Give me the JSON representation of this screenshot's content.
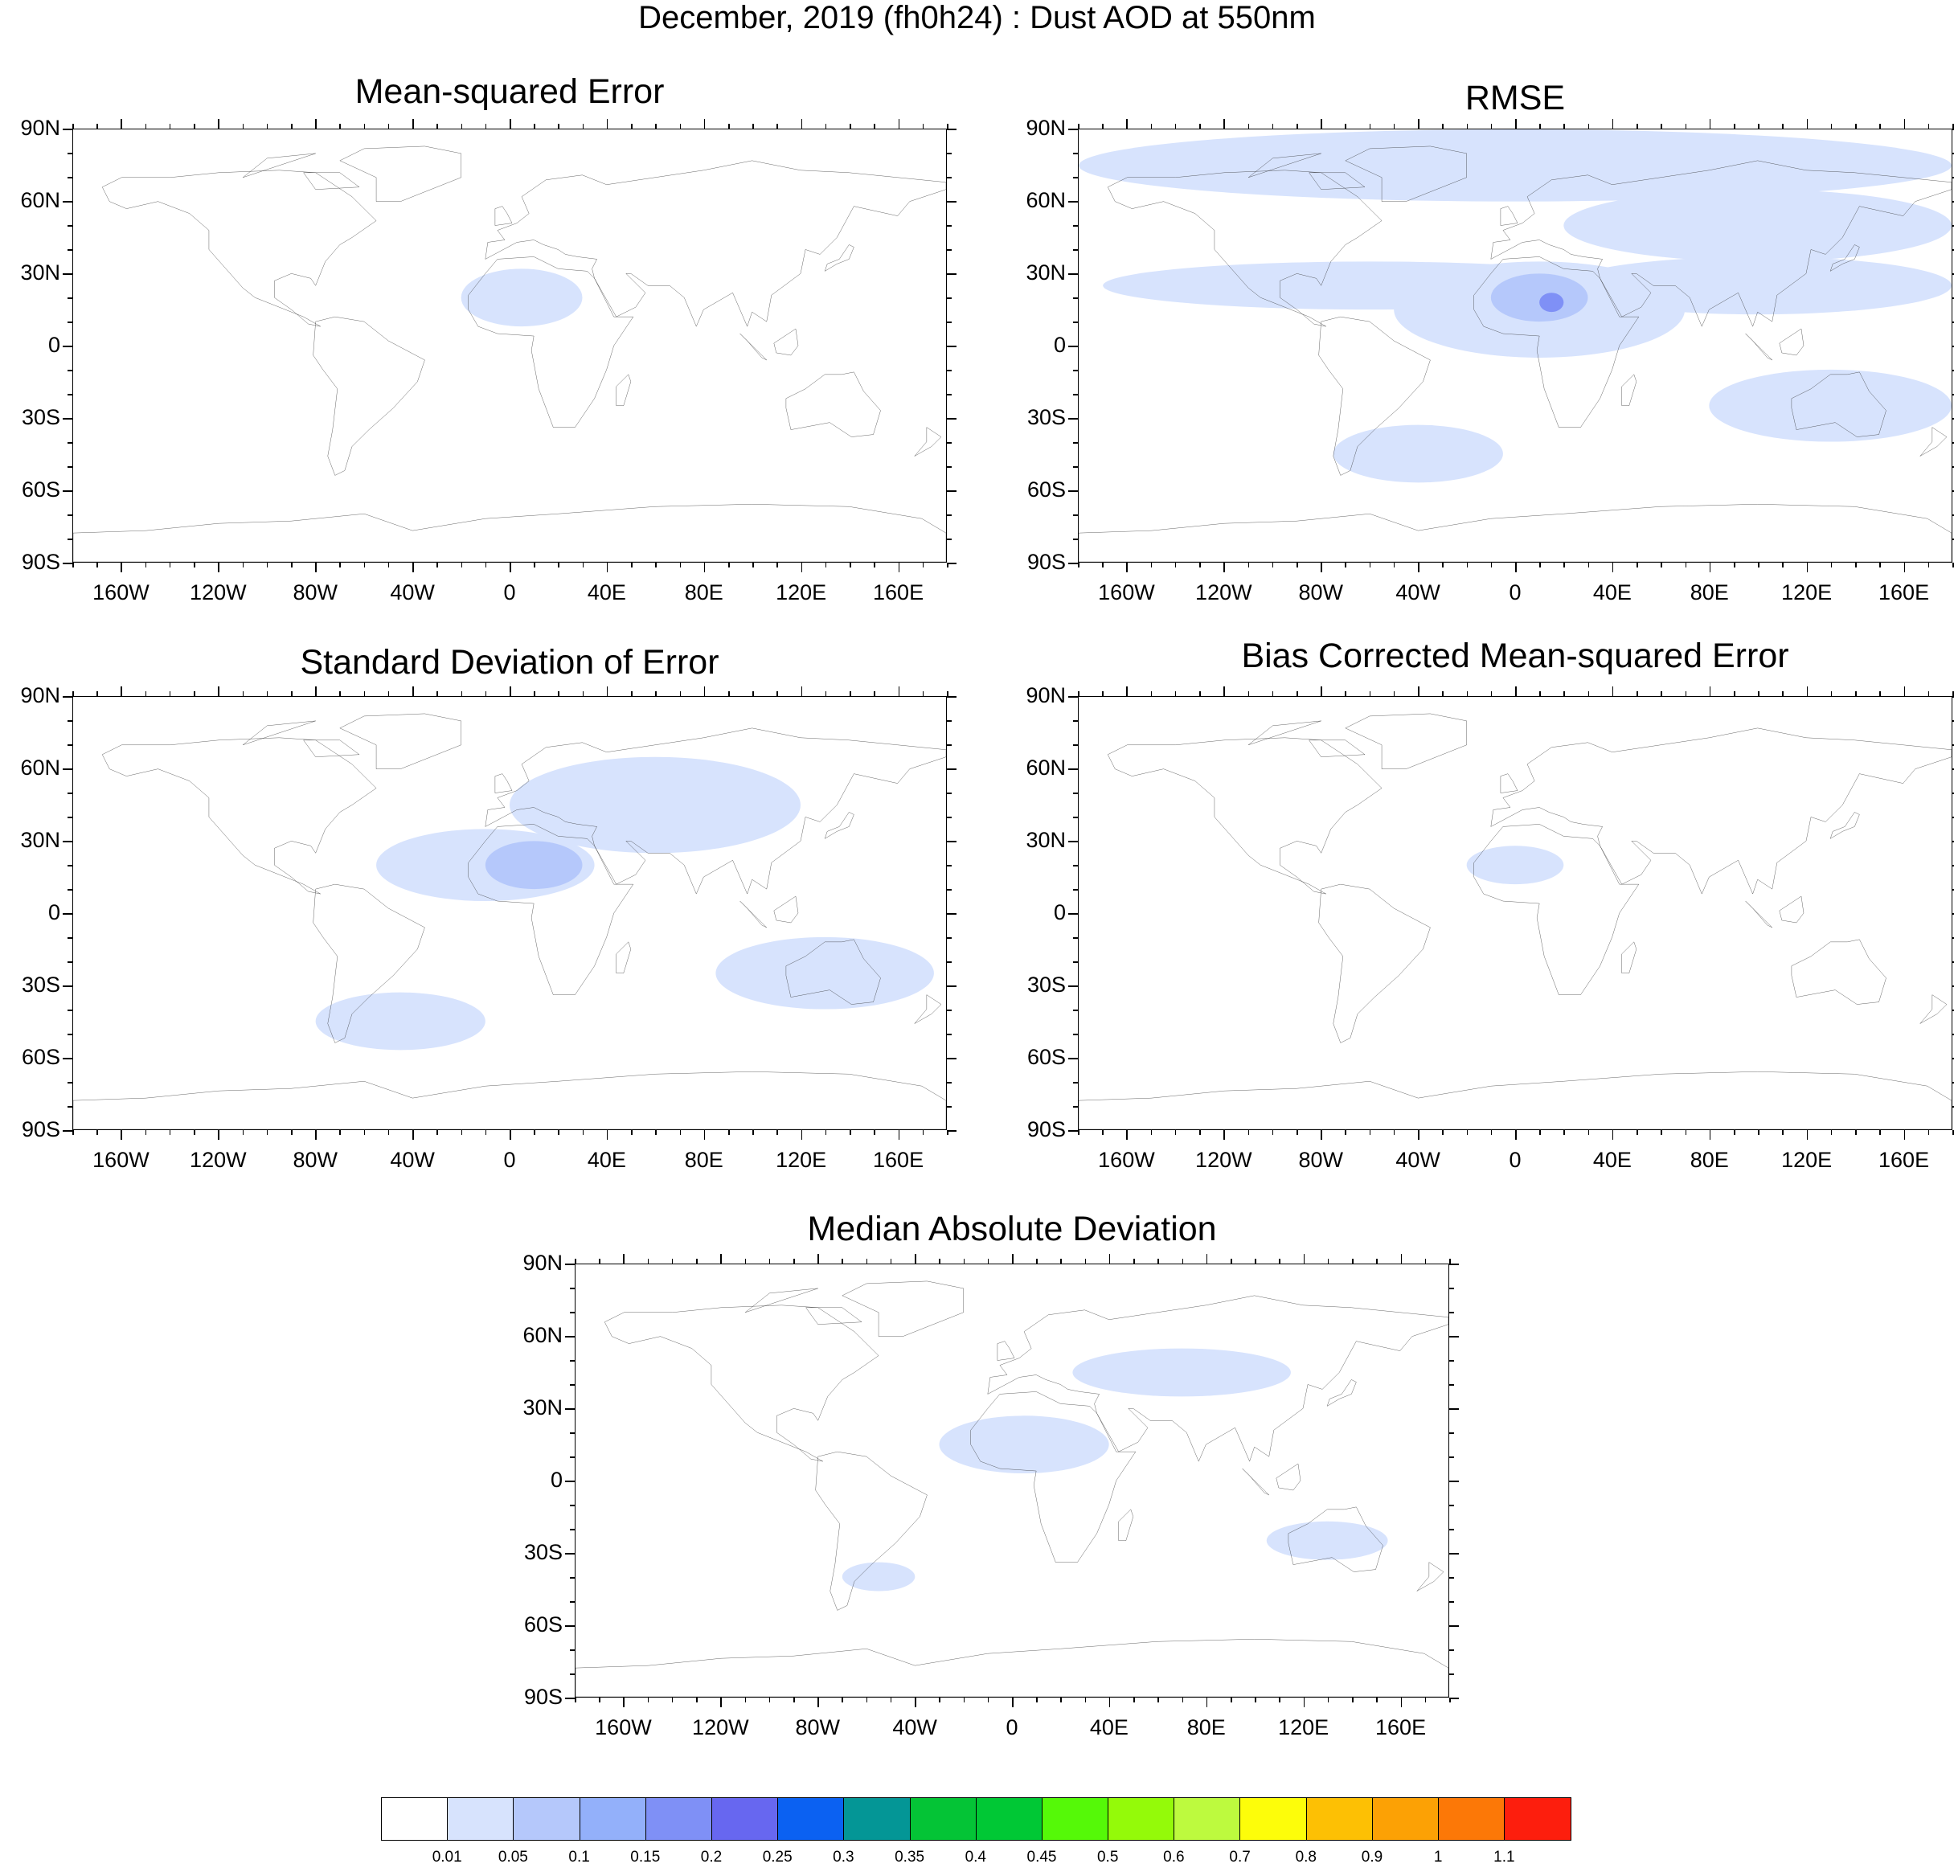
{
  "title": "December, 2019 (fh0h24) : Dust AOD at 550nm",
  "panels": [
    {
      "title": "Mean-squared Error",
      "blobs": [
        {
          "lon": 5,
          "lat": 20,
          "rx": 25,
          "ry": 12,
          "level": 1
        }
      ]
    },
    {
      "title": "RMSE",
      "blobs": [
        {
          "lon": 0,
          "lat": 75,
          "rx": 180,
          "ry": 15,
          "level": 1
        },
        {
          "lon": 100,
          "lat": 50,
          "rx": 80,
          "ry": 15,
          "level": 1
        },
        {
          "lon": -60,
          "lat": 25,
          "rx": 110,
          "ry": 10,
          "level": 1
        },
        {
          "lon": 10,
          "lat": 15,
          "rx": 60,
          "ry": 20,
          "level": 1
        },
        {
          "lon": 100,
          "lat": 25,
          "rx": 80,
          "ry": 12,
          "level": 1
        },
        {
          "lon": 10,
          "lat": 20,
          "rx": 20,
          "ry": 10,
          "level": 2
        },
        {
          "lon": 15,
          "lat": 18,
          "rx": 5,
          "ry": 4,
          "level": 4
        },
        {
          "lon": 130,
          "lat": -25,
          "rx": 50,
          "ry": 15,
          "level": 1
        },
        {
          "lon": -40,
          "lat": -45,
          "rx": 35,
          "ry": 12,
          "level": 1
        }
      ]
    },
    {
      "title": "Standard Deviation of Error",
      "blobs": [
        {
          "lon": 60,
          "lat": 45,
          "rx": 60,
          "ry": 20,
          "level": 1
        },
        {
          "lon": -10,
          "lat": 20,
          "rx": 45,
          "ry": 15,
          "level": 1
        },
        {
          "lon": 10,
          "lat": 20,
          "rx": 20,
          "ry": 10,
          "level": 2
        },
        {
          "lon": 130,
          "lat": -25,
          "rx": 45,
          "ry": 15,
          "level": 1
        },
        {
          "lon": -45,
          "lat": -45,
          "rx": 35,
          "ry": 12,
          "level": 1
        }
      ]
    },
    {
      "title": "Bias Corrected Mean-squared Error",
      "blobs": [
        {
          "lon": 0,
          "lat": 20,
          "rx": 20,
          "ry": 8,
          "level": 1
        }
      ]
    },
    {
      "title": "Median Absolute Deviation",
      "blobs": [
        {
          "lon": 70,
          "lat": 45,
          "rx": 45,
          "ry": 10,
          "level": 1
        },
        {
          "lon": 5,
          "lat": 15,
          "rx": 35,
          "ry": 12,
          "level": 1
        },
        {
          "lon": 130,
          "lat": -25,
          "rx": 25,
          "ry": 8,
          "level": 1
        },
        {
          "lon": -55,
          "lat": -40,
          "rx": 15,
          "ry": 6,
          "level": 1
        }
      ]
    }
  ],
  "y_ticks": [
    "90N",
    "60N",
    "30N",
    "0",
    "30S",
    "60S",
    "90S"
  ],
  "x_ticks": [
    "160W",
    "120W",
    "80W",
    "40W",
    "0",
    "40E",
    "80E",
    "120E",
    "160E"
  ],
  "colorbar": {
    "colors": [
      "#ffffff",
      "#d7e3fd",
      "#b5c8fb",
      "#93b0fa",
      "#7f90f6",
      "#6767f0",
      "#0b61f2",
      "#049696",
      "#04c436",
      "#00c835",
      "#55f908",
      "#94fa09",
      "#bdfa3e",
      "#fdfd0a",
      "#fdc004",
      "#fca105",
      "#fc7807",
      "#fd1e0d"
    ],
    "labels": [
      "0.01",
      "0.05",
      "0.1",
      "0.15",
      "0.2",
      "0.25",
      "0.3",
      "0.35",
      "0.4",
      "0.45",
      "0.5",
      "0.6",
      "0.7",
      "0.8",
      "0.9",
      "1",
      "1.1"
    ]
  }
}
